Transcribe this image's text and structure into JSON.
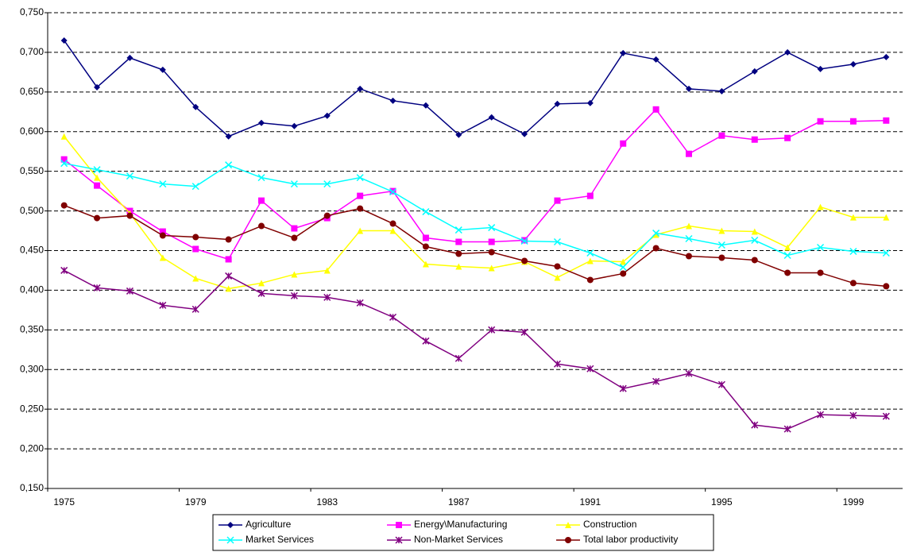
{
  "chart_data": {
    "type": "line",
    "categories": [
      "1975",
      null,
      null,
      null,
      "1979",
      null,
      null,
      null,
      "1983",
      null,
      null,
      null,
      "1987",
      null,
      null,
      null,
      "1991",
      null,
      null,
      null,
      "1995",
      null,
      null,
      null,
      "1999",
      null
    ],
    "series": [
      {
        "name": "Agriculture",
        "color": "#000080",
        "marker": "diamond",
        "values": [
          0.715,
          0.656,
          0.693,
          0.678,
          0.631,
          0.594,
          0.611,
          0.607,
          0.62,
          0.654,
          0.639,
          0.633,
          0.596,
          0.618,
          0.597,
          0.635,
          0.636,
          0.699,
          0.691,
          0.654,
          0.651,
          0.676,
          0.7,
          0.679,
          0.685,
          0.694
        ]
      },
      {
        "name": "Energy\\Manufacturing",
        "color": "#ff00ff",
        "marker": "square",
        "values": [
          0.565,
          0.532,
          0.5,
          0.474,
          0.452,
          0.439,
          0.513,
          0.478,
          0.491,
          0.519,
          0.525,
          0.466,
          0.461,
          0.461,
          0.463,
          0.513,
          0.519,
          0.585,
          0.628,
          0.572,
          0.595,
          0.59,
          0.592,
          0.613,
          0.613,
          0.614
        ]
      },
      {
        "name": "Construction",
        "color": "#ffff00",
        "marker": "triangle",
        "values": [
          0.594,
          0.542,
          0.497,
          0.441,
          0.415,
          0.402,
          0.409,
          0.42,
          0.425,
          0.475,
          0.475,
          0.433,
          0.43,
          0.428,
          0.436,
          0.416,
          0.437,
          0.436,
          0.47,
          0.481,
          0.475,
          0.474,
          0.454,
          0.505,
          0.492,
          0.492
        ]
      },
      {
        "name": "Market Services",
        "color": "#00ffff",
        "marker": "x",
        "values": [
          0.56,
          0.552,
          0.544,
          0.534,
          0.531,
          0.558,
          0.542,
          0.534,
          0.534,
          0.542,
          0.524,
          0.499,
          0.476,
          0.479,
          0.462,
          0.461,
          0.447,
          0.429,
          0.472,
          0.465,
          0.457,
          0.463,
          0.444,
          0.454,
          0.449,
          0.447
        ]
      },
      {
        "name": "Non-Market Services",
        "color": "#800080",
        "marker": "star",
        "values": [
          0.425,
          0.403,
          0.399,
          0.381,
          0.376,
          0.418,
          0.396,
          0.393,
          0.391,
          0.384,
          0.366,
          0.336,
          0.314,
          0.35,
          0.347,
          0.307,
          0.301,
          0.276,
          0.285,
          0.295,
          0.281,
          0.23,
          0.225,
          0.243,
          0.242,
          0.241
        ]
      },
      {
        "name": "Total labor productivity",
        "color": "#800000",
        "marker": "circle",
        "values": [
          0.507,
          0.491,
          0.494,
          0.469,
          0.467,
          0.464,
          0.481,
          0.466,
          0.494,
          0.503,
          0.484,
          0.455,
          0.446,
          0.448,
          0.437,
          0.43,
          0.413,
          0.421,
          0.453,
          0.443,
          0.441,
          0.438,
          0.422,
          0.422,
          0.409,
          0.405
        ]
      }
    ],
    "ylim": [
      0.15,
      0.75
    ],
    "yticks": [
      {
        "value": 0.15,
        "label": "0,150"
      },
      {
        "value": 0.2,
        "label": "0,200"
      },
      {
        "value": 0.25,
        "label": "0,250"
      },
      {
        "value": 0.3,
        "label": "0,300"
      },
      {
        "value": 0.35,
        "label": "0,350"
      },
      {
        "value": 0.4,
        "label": "0,400"
      },
      {
        "value": 0.45,
        "label": "0,450"
      },
      {
        "value": 0.5,
        "label": "0,500"
      },
      {
        "value": 0.55,
        "label": "0,550"
      },
      {
        "value": 0.6,
        "label": "0,600"
      },
      {
        "value": 0.65,
        "label": "0,650"
      },
      {
        "value": 0.7,
        "label": "0,700"
      },
      {
        "value": 0.75,
        "label": "0,750"
      }
    ],
    "grid": true,
    "legend": "bottom"
  }
}
